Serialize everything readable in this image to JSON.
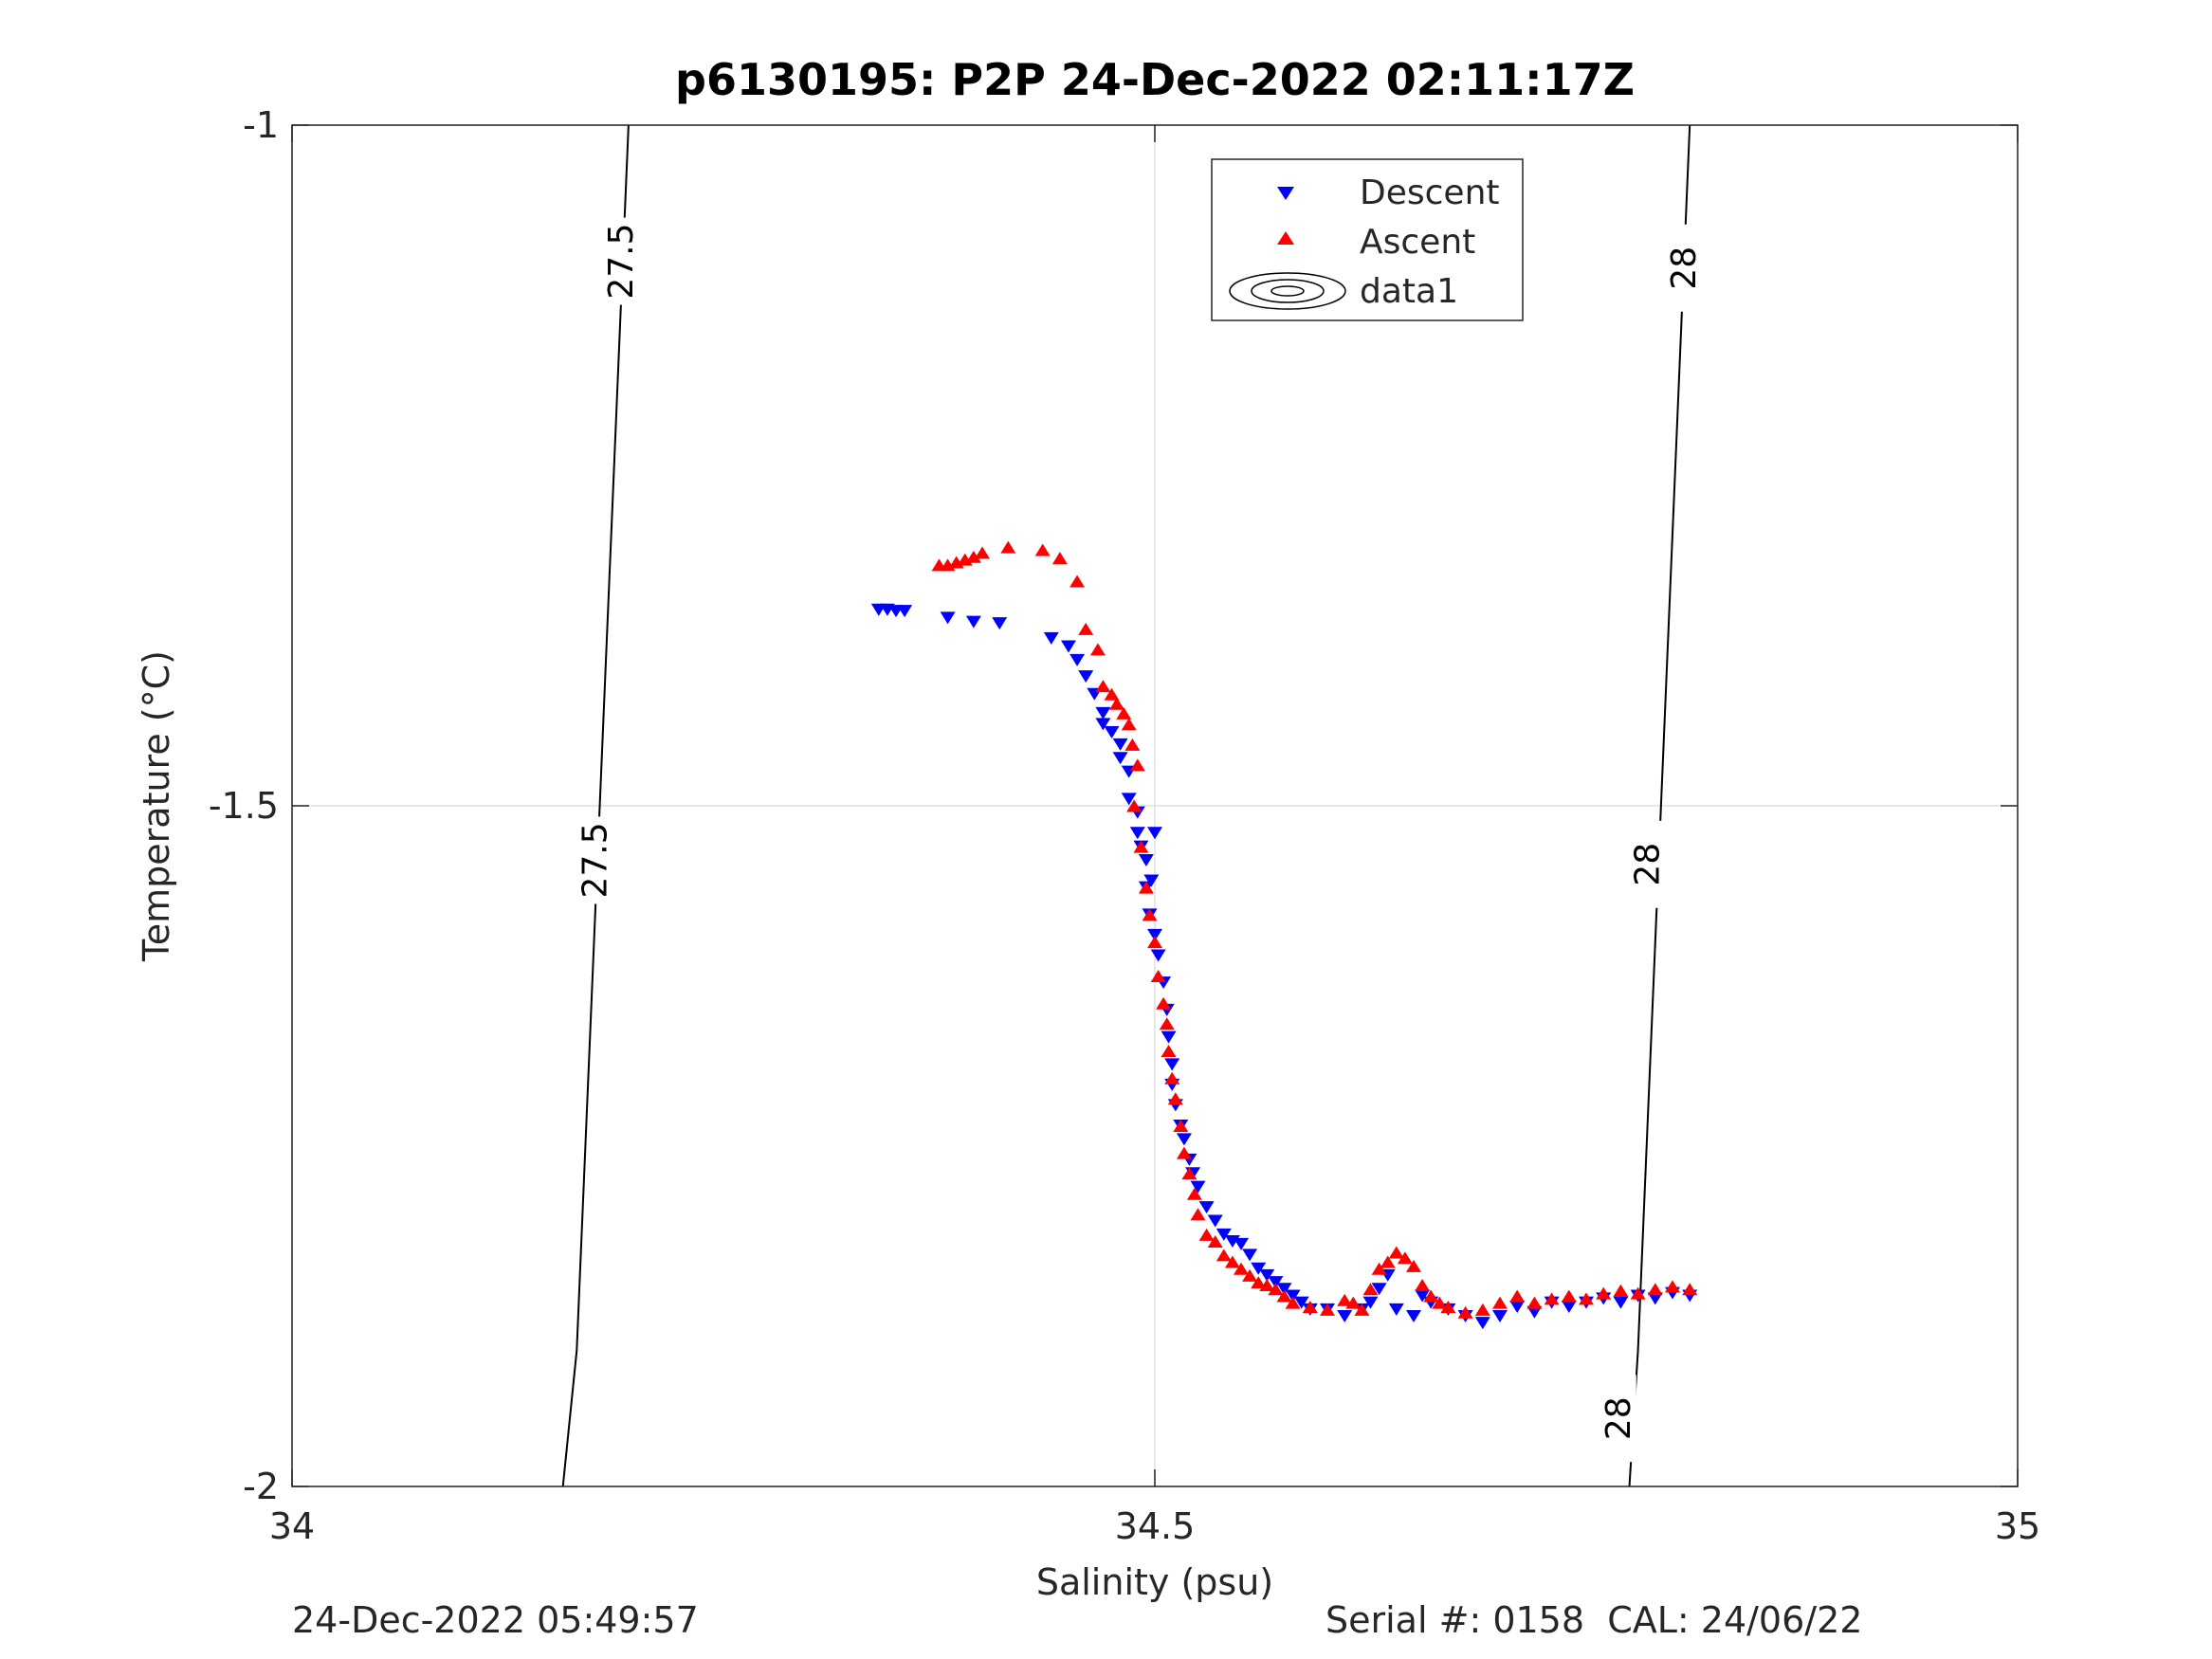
{
  "chart_data": {
    "type": "scatter",
    "title": "p6130195: P2P 24-Dec-2022 02:11:17Z",
    "xlabel": "Salinity (psu)",
    "ylabel": "Temperature (°C)",
    "xlim": [
      34,
      35
    ],
    "ylim": [
      -2,
      -1
    ],
    "x_ticks": [
      34,
      34.5,
      35
    ],
    "y_ticks": [
      -2,
      -1.5,
      -1
    ],
    "x_tick_labels": [
      "34",
      "34.5",
      "35"
    ],
    "y_tick_labels": [
      "-2",
      "-1.5",
      "-1"
    ],
    "grid": true,
    "legend_position": "top-center",
    "legend": [
      "Descent",
      "Ascent",
      "data1"
    ],
    "series": [
      {
        "name": "Descent",
        "marker": "triangle-down",
        "color": "#0000ff",
        "x": [
          34.34,
          34.345,
          34.35,
          34.355,
          34.38,
          34.395,
          34.41,
          34.44,
          34.45,
          34.455,
          34.46,
          34.465,
          34.47,
          34.47,
          34.475,
          34.48,
          34.48,
          34.485,
          34.485,
          34.49,
          34.49,
          34.492,
          34.495,
          34.5,
          34.498,
          34.495,
          34.497,
          34.5,
          34.502,
          34.505,
          34.507,
          34.508,
          34.51,
          34.51,
          34.512,
          34.515,
          34.517,
          34.52,
          34.522,
          34.525,
          34.53,
          34.535,
          34.54,
          34.545,
          34.55,
          34.555,
          34.56,
          34.565,
          34.57,
          34.575,
          34.58,
          34.585,
          34.59,
          34.6,
          34.61,
          34.62,
          34.625,
          34.63,
          34.635,
          34.64,
          34.65,
          34.655,
          34.66,
          34.67,
          34.68,
          34.69,
          34.7,
          34.71,
          34.72,
          34.73,
          34.74,
          34.75,
          34.76,
          34.77,
          34.78,
          34.79,
          34.8,
          34.81
        ],
        "y": [
          -1.356,
          -1.356,
          -1.357,
          -1.357,
          -1.362,
          -1.365,
          -1.366,
          -1.377,
          -1.383,
          -1.393,
          -1.405,
          -1.418,
          -1.432,
          -1.44,
          -1.446,
          -1.455,
          -1.465,
          -1.475,
          -1.495,
          -1.505,
          -1.52,
          -1.53,
          -1.54,
          -1.52,
          -1.555,
          -1.56,
          -1.58,
          -1.595,
          -1.61,
          -1.63,
          -1.65,
          -1.67,
          -1.69,
          -1.705,
          -1.72,
          -1.735,
          -1.745,
          -1.76,
          -1.77,
          -1.78,
          -1.795,
          -1.805,
          -1.815,
          -1.82,
          -1.822,
          -1.83,
          -1.84,
          -1.845,
          -1.85,
          -1.855,
          -1.86,
          -1.865,
          -1.87,
          -1.87,
          -1.875,
          -1.87,
          -1.865,
          -1.855,
          -1.845,
          -1.87,
          -1.875,
          -1.86,
          -1.865,
          -1.87,
          -1.875,
          -1.88,
          -1.875,
          -1.868,
          -1.872,
          -1.865,
          -1.868,
          -1.865,
          -1.862,
          -1.865,
          -1.86,
          -1.862,
          -1.858,
          -1.86
        ]
      },
      {
        "name": "Ascent",
        "marker": "triangle-up",
        "color": "#ff0000",
        "x": [
          34.375,
          34.38,
          34.385,
          34.39,
          34.395,
          34.4,
          34.415,
          34.435,
          34.445,
          34.455,
          34.46,
          34.467,
          34.47,
          34.475,
          34.478,
          34.482,
          34.485,
          34.487,
          34.49,
          34.488,
          34.492,
          34.495,
          34.497,
          34.5,
          34.502,
          34.505,
          34.507,
          34.508,
          34.51,
          34.512,
          34.515,
          34.517,
          34.52,
          34.523,
          34.525,
          34.53,
          34.535,
          34.54,
          34.545,
          34.55,
          34.555,
          34.56,
          34.565,
          34.57,
          34.575,
          34.58,
          34.59,
          34.6,
          34.61,
          34.615,
          34.62,
          34.625,
          34.63,
          34.635,
          34.64,
          34.645,
          34.65,
          34.655,
          34.66,
          34.665,
          34.67,
          34.68,
          34.69,
          34.7,
          34.71,
          34.72,
          34.73,
          34.74,
          34.75,
          34.76,
          34.77,
          34.78,
          34.79,
          34.8,
          34.81
        ],
        "y": [
          -1.323,
          -1.323,
          -1.321,
          -1.319,
          -1.317,
          -1.314,
          -1.31,
          -1.312,
          -1.318,
          -1.335,
          -1.37,
          -1.385,
          -1.412,
          -1.418,
          -1.425,
          -1.432,
          -1.44,
          -1.455,
          -1.47,
          -1.5,
          -1.53,
          -1.56,
          -1.58,
          -1.6,
          -1.625,
          -1.645,
          -1.66,
          -1.68,
          -1.7,
          -1.715,
          -1.735,
          -1.755,
          -1.77,
          -1.785,
          -1.8,
          -1.815,
          -1.82,
          -1.83,
          -1.835,
          -1.84,
          -1.845,
          -1.85,
          -1.852,
          -1.855,
          -1.86,
          -1.865,
          -1.868,
          -1.87,
          -1.863,
          -1.865,
          -1.87,
          -1.855,
          -1.84,
          -1.835,
          -1.828,
          -1.832,
          -1.838,
          -1.852,
          -1.86,
          -1.865,
          -1.868,
          -1.872,
          -1.87,
          -1.865,
          -1.86,
          -1.865,
          -1.862,
          -1.86,
          -1.862,
          -1.858,
          -1.856,
          -1.858,
          -1.855,
          -1.853,
          -1.855
        ]
      }
    ],
    "contours": [
      {
        "label": "27.5",
        "points": [
          [
            34.195,
            -1.0
          ],
          [
            34.19,
            -1.15
          ],
          [
            34.185,
            -1.3
          ],
          [
            34.18,
            -1.45
          ],
          [
            34.175,
            -1.6
          ],
          [
            34.17,
            -1.75
          ],
          [
            34.165,
            -1.9
          ],
          [
            34.157,
            -2.0
          ]
        ],
        "label_positions": [
          [
            34.19,
            -1.1
          ],
          [
            34.175,
            -1.54
          ]
        ]
      },
      {
        "label": "28",
        "points": [
          [
            34.81,
            -1.0
          ],
          [
            34.805,
            -1.15
          ],
          [
            34.8,
            -1.3
          ],
          [
            34.795,
            -1.45
          ],
          [
            34.79,
            -1.6
          ],
          [
            34.785,
            -1.75
          ],
          [
            34.78,
            -1.9
          ],
          [
            34.775,
            -2.0
          ]
        ],
        "label_positions": [
          [
            34.806,
            -1.105
          ],
          [
            34.785,
            -1.543
          ],
          [
            34.768,
            -1.95
          ]
        ]
      }
    ]
  },
  "footer": {
    "left": "24-Dec-2022 05:49:57",
    "right": "Serial #: 0158  CAL: 24/06/22"
  }
}
